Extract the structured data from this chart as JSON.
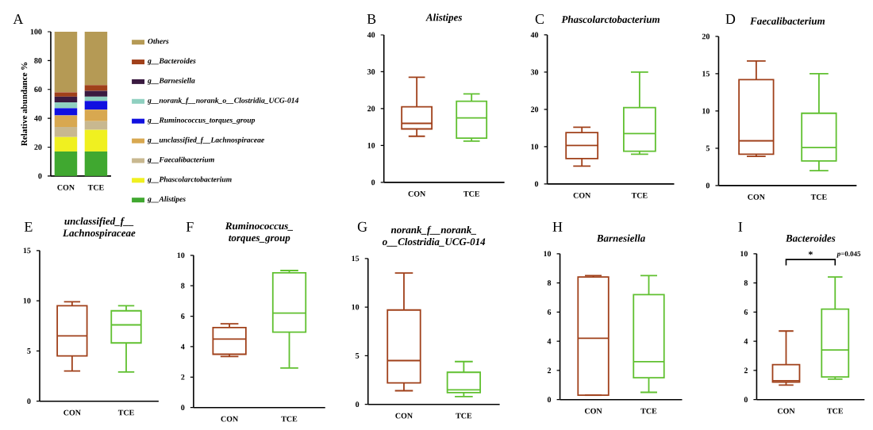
{
  "chart_data": [
    {
      "type": "bar",
      "stacked": true,
      "annotations": [
        "A"
      ],
      "ylabel": "Relative abundance %",
      "categories": [
        "CON",
        "TCE"
      ],
      "ylim": [
        0,
        100
      ],
      "yticks": [
        0,
        20,
        40,
        60,
        80,
        100
      ],
      "legend": "right",
      "series": [
        {
          "name": "g__Alistipes",
          "color": "#40a830",
          "values": [
            17,
            17
          ]
        },
        {
          "name": "g__Phascolarctobacterium",
          "color": "#f0f020",
          "values": [
            10,
            15
          ]
        },
        {
          "name": "g__Faecalibacterium",
          "color": "#c8b890",
          "values": [
            7,
            6
          ]
        },
        {
          "name": "g__unclassified_f__Lachnospiraceae",
          "color": "#d8a850",
          "values": [
            8,
            8
          ]
        },
        {
          "name": "g__Ruminococcus_torques_group",
          "color": "#1010e0",
          "values": [
            5,
            6
          ]
        },
        {
          "name": "g__norank_f__norank_o__Clostridia_UCG-014",
          "color": "#8fd0c0",
          "values": [
            4,
            3
          ]
        },
        {
          "name": "g__Barnesiella",
          "color": "#3a1a40",
          "values": [
            4,
            4
          ]
        },
        {
          "name": "g__Bacteroides",
          "color": "#a0401a",
          "values": [
            3,
            4
          ]
        },
        {
          "name": "Others",
          "color": "#b59a55",
          "values": [
            42,
            37
          ]
        }
      ]
    },
    {
      "type": "box",
      "title": "Alistipes",
      "annotations": [
        "B"
      ],
      "categories": [
        "CON",
        "TCE"
      ],
      "colors": [
        "#a0401a",
        "#60c030"
      ],
      "ylim": [
        0,
        40
      ],
      "yticks": [
        0,
        10,
        20,
        30,
        40
      ],
      "boxes": [
        {
          "low": 12.5,
          "q1": 14.5,
          "median": 16,
          "q3": 20.5,
          "high": 28.5
        },
        {
          "low": 11.2,
          "q1": 12,
          "median": 17.5,
          "q3": 22,
          "high": 24
        }
      ]
    },
    {
      "type": "box",
      "title": "Phascolarctobacterium",
      "annotations": [
        "C"
      ],
      "categories": [
        "CON",
        "TCE"
      ],
      "colors": [
        "#a0401a",
        "#60c030"
      ],
      "ylim": [
        0,
        40
      ],
      "yticks": [
        0,
        10,
        20,
        30,
        40
      ],
      "boxes": [
        {
          "low": 4.8,
          "q1": 6.8,
          "median": 10.3,
          "q3": 13.8,
          "high": 15.2
        },
        {
          "low": 8,
          "q1": 8.8,
          "median": 13.5,
          "q3": 20.5,
          "high": 30
        }
      ]
    },
    {
      "type": "box",
      "title": "Faecalibacterium",
      "annotations": [
        "D"
      ],
      "categories": [
        "CON",
        "TCE"
      ],
      "colors": [
        "#a0401a",
        "#60c030"
      ],
      "ylim": [
        0,
        20
      ],
      "yticks": [
        0,
        5,
        10,
        15,
        20
      ],
      "boxes": [
        {
          "low": 3.9,
          "q1": 4.2,
          "median": 6,
          "q3": 14.2,
          "high": 16.7
        },
        {
          "low": 2,
          "q1": 3.3,
          "median": 5.1,
          "q3": 9.7,
          "high": 15
        }
      ]
    },
    {
      "type": "box",
      "title": "unclassified_f__ Lachnospiraceae",
      "annotations": [
        "E"
      ],
      "categories": [
        "CON",
        "TCE"
      ],
      "colors": [
        "#a0401a",
        "#60c030"
      ],
      "ylim": [
        0,
        15
      ],
      "yticks": [
        0,
        5,
        10,
        15
      ],
      "boxes": [
        {
          "low": 3,
          "q1": 4.5,
          "median": 6.5,
          "q3": 9.5,
          "high": 9.9
        },
        {
          "low": 2.9,
          "q1": 5.8,
          "median": 7.6,
          "q3": 9,
          "high": 9.5
        }
      ]
    },
    {
      "type": "box",
      "title": "Ruminococcus_ torques_group",
      "annotations": [
        "F"
      ],
      "categories": [
        "CON",
        "TCE"
      ],
      "colors": [
        "#a0401a",
        "#60c030"
      ],
      "ylim": [
        0,
        10
      ],
      "yticks": [
        0,
        2,
        4,
        6,
        8,
        10
      ],
      "boxes": [
        {
          "low": 3.35,
          "q1": 3.5,
          "median": 4.5,
          "q3": 5.25,
          "high": 5.5
        },
        {
          "low": 2.6,
          "q1": 4.95,
          "median": 6.2,
          "q3": 8.85,
          "high": 9
        }
      ]
    },
    {
      "type": "box",
      "title": "norank_f__norank_ o__Clostridia_UCG-014",
      "annotations": [
        "G"
      ],
      "categories": [
        "CON",
        "TCE"
      ],
      "colors": [
        "#a0401a",
        "#60c030"
      ],
      "ylim": [
        0,
        15
      ],
      "yticks": [
        0,
        5,
        10,
        15
      ],
      "boxes": [
        {
          "low": 1.4,
          "q1": 2.2,
          "median": 4.5,
          "q3": 9.7,
          "high": 13.5
        },
        {
          "low": 0.8,
          "q1": 1.2,
          "median": 1.5,
          "q3": 3.3,
          "high": 4.4
        }
      ]
    },
    {
      "type": "box",
      "title": "Barnesiella",
      "annotations": [
        "H"
      ],
      "categories": [
        "CON",
        "TCE"
      ],
      "colors": [
        "#a0401a",
        "#60c030"
      ],
      "ylim": [
        0,
        10
      ],
      "yticks": [
        0,
        2,
        4,
        6,
        8,
        10
      ],
      "boxes": [
        {
          "low": 0.3,
          "q1": 0.3,
          "median": 4.2,
          "q3": 8.4,
          "high": 8.5
        },
        {
          "low": 0.5,
          "q1": 1.5,
          "median": 2.6,
          "q3": 7.2,
          "high": 8.5
        }
      ]
    },
    {
      "type": "box",
      "title": "Bacteroides",
      "annotations": [
        "I",
        "*",
        "*p*=0.045"
      ],
      "categories": [
        "CON",
        "TCE"
      ],
      "colors": [
        "#a0401a",
        "#60c030"
      ],
      "ylim": [
        0,
        10
      ],
      "yticks": [
        0,
        2,
        4,
        6,
        8,
        10
      ],
      "boxes": [
        {
          "low": 1,
          "q1": 1.2,
          "median": 1.3,
          "q3": 2.4,
          "high": 4.7
        },
        {
          "low": 1.4,
          "q1": 1.55,
          "median": 3.4,
          "q3": 6.2,
          "high": 8.4
        }
      ]
    }
  ]
}
